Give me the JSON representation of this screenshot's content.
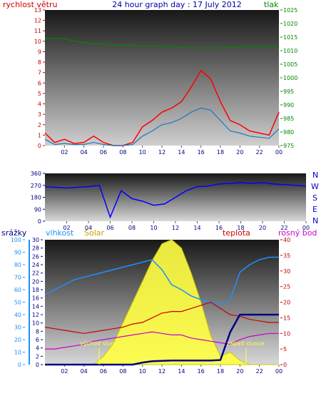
{
  "header": {
    "title": "24 hour graph day : 17 July 2012",
    "wind_label": "rychlost větru",
    "pressure_label": "tlak"
  },
  "colors": {
    "wind": "#ff0000",
    "gust": "#1a78c0",
    "pressure": "#008800",
    "direction": "#0000ff",
    "humidity": "#1e90ff",
    "temperature": "#cc0000",
    "dewpoint": "#cc00cc",
    "rain": "#000080",
    "solar": "#ffff44",
    "solar_curve": "#c8c800"
  },
  "panels": {
    "lower_labels": {
      "rain": "srážky",
      "humidity": "vlhkost",
      "solar": "Solar",
      "temperature": "teplota",
      "dewpoint": "rosný bod"
    },
    "direction_labels": [
      "N",
      "W",
      "S",
      "E",
      "N"
    ],
    "annotations": {
      "sunrise": "východ slunce",
      "sunset": "západ slunce"
    }
  },
  "chart_data": [
    {
      "type": "line",
      "panel": "wind_pressure",
      "x_ticks": [
        "02",
        "04",
        "06",
        "08",
        "10",
        "12",
        "14",
        "16",
        "18",
        "20",
        "22",
        "00"
      ],
      "left_axis": {
        "label": "rychlost větru",
        "ticks": [
          "0",
          "1",
          "2",
          "3",
          "4",
          "5",
          "6",
          "7",
          "8",
          "9",
          "10",
          "11",
          "12",
          "13"
        ],
        "ylim": [
          0,
          13
        ]
      },
      "right_axis": {
        "label": "tlak",
        "ticks": [
          "975",
          "980",
          "985",
          "990",
          "995",
          "1000",
          "1005",
          "1010",
          "1015",
          "1020",
          "1025"
        ],
        "ylim": [
          975,
          1025
        ]
      },
      "x_hours": [
        0,
        1,
        2,
        3,
        4,
        5,
        6,
        7,
        8,
        9,
        10,
        11,
        12,
        13,
        14,
        15,
        16,
        17,
        18,
        19,
        20,
        21,
        22,
        23,
        24
      ],
      "series": [
        {
          "name": "rychlost větru",
          "values": [
            1.2,
            0.3,
            0.6,
            0.2,
            0.3,
            0.9,
            0.3,
            0,
            0,
            0.3,
            1.8,
            2.4,
            3.2,
            3.6,
            4.2,
            5.6,
            7.2,
            6.4,
            4.2,
            2.4,
            2.0,
            1.4,
            1.2,
            1.0,
            3.2
          ]
        },
        {
          "name": "",
          "values": [
            0.6,
            0.1,
            0.2,
            0.1,
            0.1,
            0.3,
            0.1,
            0,
            0,
            0.1,
            0.9,
            1.4,
            2.0,
            2.2,
            2.6,
            3.2,
            3.6,
            3.4,
            2.4,
            1.4,
            1.2,
            0.9,
            0.8,
            0.7,
            1.6
          ]
        },
        {
          "name": "tlak",
          "values": [
            1014.5,
            1014.5,
            1014.5,
            1013.5,
            1013,
            1012.5,
            1012.5,
            1012,
            1012,
            1012,
            1011.8,
            1011.8,
            1011.5,
            1011.5,
            1011.2,
            1011,
            1011,
            1011,
            1011,
            1011.2,
            1011.5,
            1011.5,
            1011.5,
            1011.5,
            1011.5
          ]
        }
      ]
    },
    {
      "type": "line",
      "panel": "wind_direction",
      "x_ticks": [
        "02",
        "04",
        "06",
        "08",
        "10",
        "12",
        "14",
        "16",
        "18",
        "20",
        "22",
        "00"
      ],
      "y_ticks": [
        "0",
        "90",
        "180",
        "270",
        "360"
      ],
      "ylim": [
        0,
        360
      ],
      "x_hours": [
        0,
        1,
        2,
        3,
        4,
        5,
        6,
        7,
        8,
        9,
        10,
        11,
        12,
        13,
        14,
        15,
        16,
        17,
        18,
        19,
        20,
        21,
        22,
        23,
        24
      ],
      "series": [
        {
          "name": "",
          "values": [
            260,
            255,
            250,
            255,
            260,
            270,
            30,
            230,
            170,
            150,
            120,
            130,
            180,
            230,
            260,
            265,
            280,
            285,
            290,
            285,
            290,
            280,
            275,
            270,
            265
          ]
        }
      ]
    },
    {
      "type": "line",
      "panel": "temp_hum_solar",
      "x_ticks": [
        "02",
        "04",
        "06",
        "08",
        "10",
        "12",
        "14",
        "16",
        "18",
        "20",
        "22",
        "00"
      ],
      "rain_axis": {
        "label": "srážky",
        "ticks": [
          "0",
          "2",
          "4",
          "6",
          "8",
          "10",
          "12",
          "14",
          "16",
          "18",
          "20",
          "22",
          "24",
          "26",
          "28",
          "30"
        ],
        "ylim": [
          0,
          30
        ]
      },
      "humidity_axis": {
        "label": "vlhkost",
        "ticks": [
          "0",
          "10",
          "20",
          "30",
          "40",
          "50",
          "60",
          "70",
          "80",
          "90",
          "100"
        ],
        "ylim": [
          0,
          100
        ]
      },
      "temp_axis": {
        "label": "teplota",
        "ticks": [
          "0",
          "5",
          "10",
          "15",
          "20",
          "25",
          "30",
          "35",
          "40"
        ],
        "ylim": [
          0,
          40
        ]
      },
      "x_hours": [
        0,
        1,
        2,
        3,
        4,
        5,
        6,
        7,
        8,
        9,
        10,
        11,
        12,
        13,
        14,
        15,
        16,
        17,
        18,
        19,
        20,
        21,
        22,
        23,
        24
      ],
      "series": [
        {
          "name": "vlhkost",
          "values": [
            56,
            60,
            64,
            68,
            70,
            72,
            74,
            76,
            78,
            80,
            82,
            84,
            76,
            64,
            60,
            55,
            52,
            50,
            48,
            52,
            74,
            80,
            84,
            86,
            86
          ]
        },
        {
          "name": "teplota",
          "values": [
            12,
            11.5,
            11,
            10.5,
            10,
            10.5,
            11,
            11.5,
            12,
            13,
            13.5,
            15,
            16.5,
            17,
            17,
            18,
            19,
            20,
            18,
            16,
            15.5,
            14.5,
            14,
            13.5,
            13.5
          ]
        },
        {
          "name": "rosný bod",
          "values": [
            5,
            5,
            5.5,
            6,
            6.5,
            7.5,
            8,
            8.5,
            9,
            9.5,
            10,
            10.5,
            10,
            9.5,
            9.5,
            8.5,
            8,
            7.5,
            7,
            6.5,
            8,
            9,
            9.5,
            10,
            10
          ]
        },
        {
          "name": "srážky",
          "values": [
            0,
            0,
            0,
            0,
            0,
            0,
            0,
            0,
            0,
            0,
            0.5,
            0.8,
            0.9,
            1.0,
            1.0,
            1.0,
            1.0,
            1.0,
            1.1,
            7.8,
            12.0,
            12.0,
            12.0,
            12.0,
            12.0
          ]
        },
        {
          "name": "Solar",
          "values": [
            0,
            0,
            0,
            0,
            0,
            0,
            2,
            5,
            10,
            15,
            20,
            25,
            29,
            30,
            28,
            22,
            15,
            7,
            2,
            3,
            1,
            0,
            0,
            0,
            0
          ]
        }
      ]
    }
  ]
}
